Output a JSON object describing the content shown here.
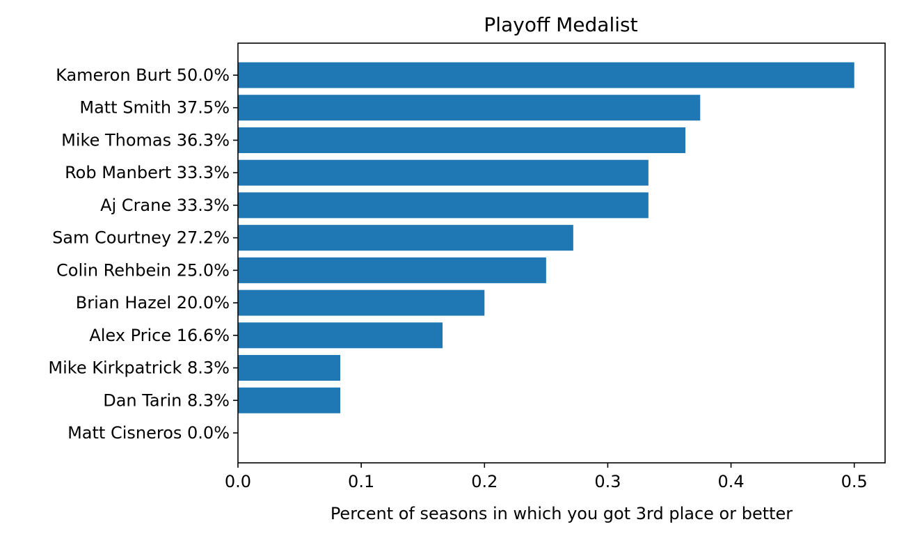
{
  "chart_data": {
    "type": "bar",
    "orientation": "horizontal",
    "title": "Playoff Medalist",
    "xlabel": "Percent of seasons in which you got 3rd place or better",
    "ylabel": "",
    "xlim": [
      0,
      0.525
    ],
    "xticks": [
      0.0,
      0.1,
      0.2,
      0.3,
      0.4,
      0.5
    ],
    "xtick_labels": [
      "0.0",
      "0.1",
      "0.2",
      "0.3",
      "0.4",
      "0.5"
    ],
    "grid": false,
    "bar_color": "#1f77b4",
    "categories": [
      "Kameron Burt 50.0%",
      "Matt Smith 37.5%",
      "Mike Thomas 36.3%",
      "Rob Manbert 33.3%",
      "Aj Crane 33.3%",
      "Sam Courtney 27.2%",
      "Colin Rehbein 25.0%",
      "Brian Hazel 20.0%",
      "Alex Price 16.6%",
      "Mike Kirkpatrick 8.3%",
      "Dan Tarin 8.3%",
      "Matt Cisneros 0.0%"
    ],
    "values": [
      0.5,
      0.375,
      0.363,
      0.333,
      0.333,
      0.272,
      0.25,
      0.2,
      0.166,
      0.083,
      0.083,
      0.0
    ]
  }
}
